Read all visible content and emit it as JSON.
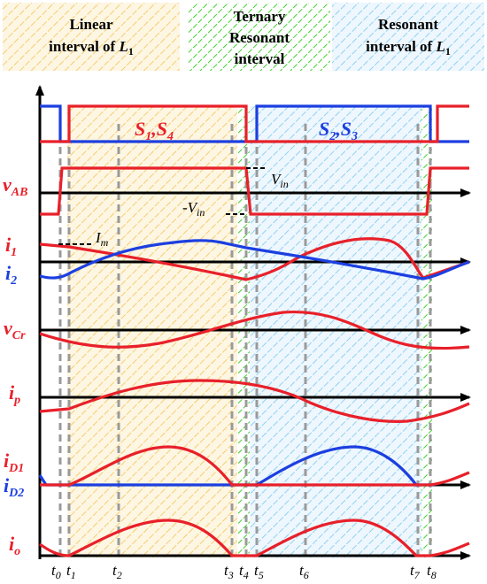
{
  "legend": {
    "linear": {
      "line1": "Linear",
      "line2_prefix": "interval of ",
      "line2_var": "L",
      "line2_sub": "1"
    },
    "ternary": {
      "line1": "Ternary",
      "line2": "Resonant",
      "line3": "interval"
    },
    "resonant": {
      "line1": "Resonant",
      "line2_prefix": "interval of ",
      "line2_var": "L",
      "line2_sub": "1"
    }
  },
  "switch_labels": {
    "s14": {
      "a": "S",
      "a_sub": "1",
      "sep": ",",
      "b": "S",
      "b_sub": "4"
    },
    "s23": {
      "a": "S",
      "a_sub": "2",
      "sep": ",",
      "b": "S",
      "b_sub": "3"
    }
  },
  "signals": {
    "vab": {
      "base": "v",
      "sub": "AB"
    },
    "i1": {
      "base": "i",
      "sub": "1"
    },
    "i2": {
      "base": "i",
      "sub": "2"
    },
    "vcr": {
      "base": "v",
      "sub": "Cr"
    },
    "ip": {
      "base": "i",
      "sub": "p"
    },
    "id1": {
      "base": "i",
      "sub": "D1"
    },
    "id2": {
      "base": "i",
      "sub": "D2"
    },
    "io": {
      "base": "i",
      "sub": "o"
    }
  },
  "annotations": {
    "vin": {
      "base": "V",
      "sub": "in"
    },
    "neg_vin": {
      "base": "-V",
      "sub": "in"
    },
    "im": {
      "base": "I",
      "sub": "m"
    }
  },
  "time_ticks": [
    {
      "base": "t",
      "sub": "0"
    },
    {
      "base": "t",
      "sub": "1"
    },
    {
      "base": "t",
      "sub": "2"
    },
    {
      "base": "t",
      "sub": "3"
    },
    {
      "base": "t",
      "sub": "4"
    },
    {
      "base": "t",
      "sub": "5"
    },
    {
      "base": "t",
      "sub": "6"
    },
    {
      "base": "t",
      "sub": "7"
    },
    {
      "base": "t",
      "sub": "8"
    }
  ],
  "colors": {
    "red": "#e8202a",
    "blue": "#1c3fe0",
    "linear_hatch": "#f3c35a",
    "linear_fill": "#fdf6e2",
    "ternary_hatch": "#3fd12e",
    "resonant_hatch": "#7cc7ef",
    "resonant_fill": "#eef7fd",
    "dash": "#999999"
  }
}
